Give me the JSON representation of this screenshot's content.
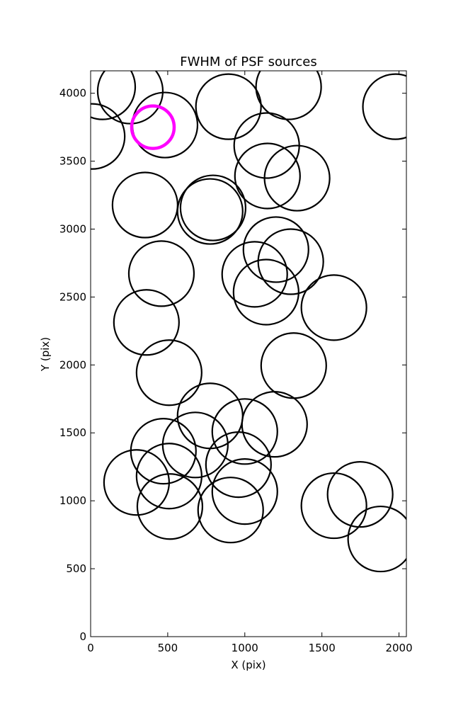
{
  "chart_data": {
    "type": "scatter",
    "title": "FWHM of PSF sources",
    "x_label": "X (pix)",
    "y_label": "Y (pix)",
    "xlim": [
      0,
      2048
    ],
    "ylim": [
      0,
      4165
    ],
    "xticks": [
      0,
      500,
      1000,
      1500,
      2000
    ],
    "yticks": [
      0,
      500,
      1000,
      1500,
      2000,
      2500,
      3000,
      3500,
      4000
    ],
    "grid": false,
    "series": [
      {
        "color": "#000000",
        "marker_size": 46,
        "line_width": 2.2,
        "x": [
          78,
          257,
          482,
          10,
          894,
          1284,
          1977,
          1142,
          1147,
          1339,
          353,
          794,
          775,
          459,
          362,
          1064,
          1138,
          1202,
          1298,
          1578,
          1317,
          509,
          775,
          1000,
          1193,
          472,
          679,
          509,
          298,
          959,
          1000,
          514,
          908,
          1578,
          1748,
          1881
        ],
        "values": [
          4047,
          4016,
          3766,
          3682,
          3901,
          4047,
          3901,
          3615,
          3391,
          3375,
          3177,
          3156,
          3130,
          2672,
          2313,
          2667,
          2536,
          2849,
          2760,
          2422,
          1995,
          1943,
          1625,
          1510,
          1563,
          1365,
          1411,
          1182,
          1135,
          1266,
          1068,
          958,
          932,
          964,
          1047,
          719
        ]
      },
      {
        "color": "#ff00ff",
        "marker_size": 30,
        "line_width": 4.5,
        "x": [
          404
        ],
        "values": [
          3750
        ]
      }
    ]
  }
}
